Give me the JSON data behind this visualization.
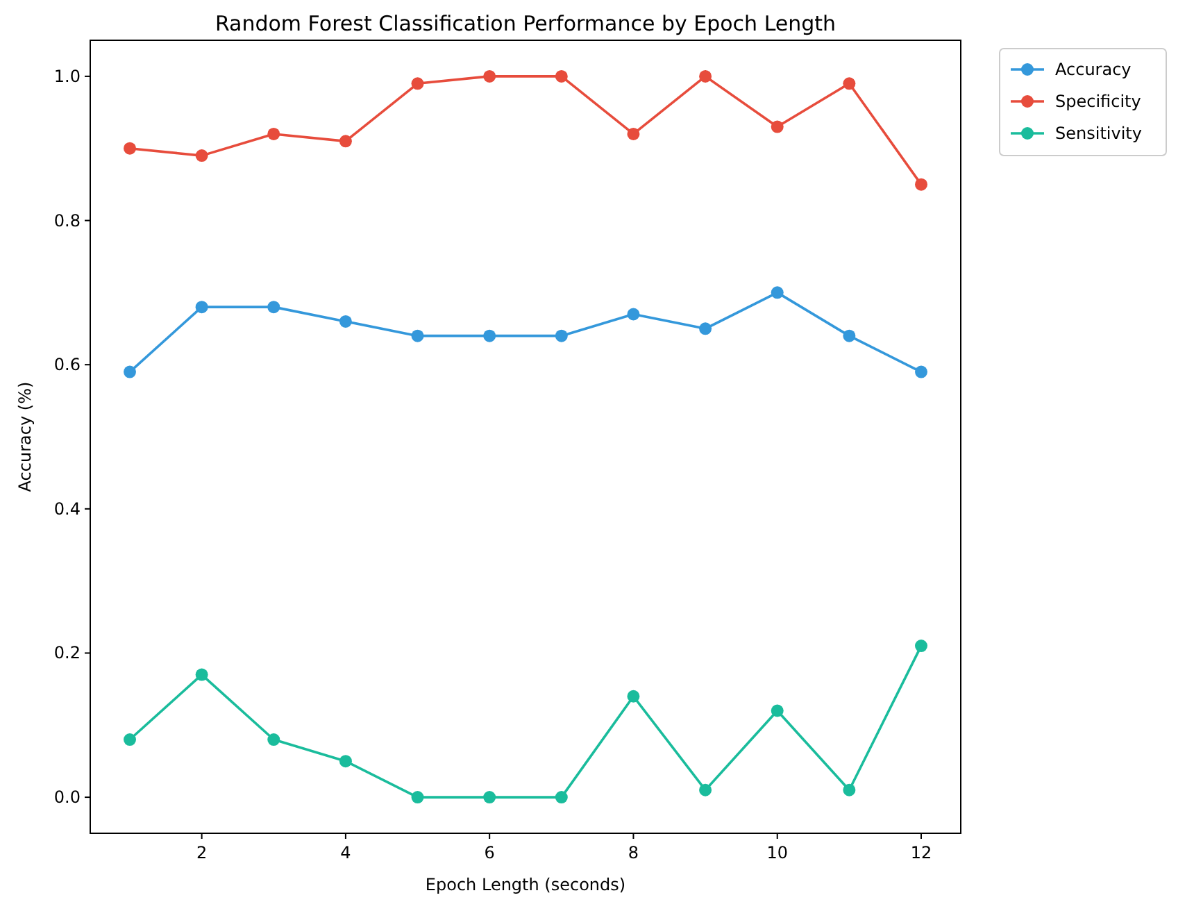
{
  "chart_data": {
    "type": "line",
    "title": "Random Forest Classification Performance by Epoch Length",
    "xlabel": "Epoch Length (seconds)",
    "ylabel": "Accuracy (%)",
    "x": [
      1,
      2,
      3,
      4,
      5,
      6,
      7,
      8,
      9,
      10,
      11,
      12
    ],
    "series": [
      {
        "name": "Accuracy",
        "color": "#3498db",
        "values": [
          0.59,
          0.68,
          0.68,
          0.66,
          0.64,
          0.64,
          0.64,
          0.67,
          0.65,
          0.7,
          0.64,
          0.59
        ]
      },
      {
        "name": "Specificity",
        "color": "#e74c3c",
        "values": [
          0.9,
          0.89,
          0.92,
          0.91,
          0.99,
          1.0,
          1.0,
          0.92,
          1.0,
          0.93,
          0.99,
          0.85
        ]
      },
      {
        "name": "Sensitivity",
        "color": "#1abc9c",
        "values": [
          0.08,
          0.17,
          0.08,
          0.05,
          0,
          0,
          0,
          0.14,
          0.01,
          0.12,
          0.01,
          0.21
        ]
      }
    ],
    "xlim": [
      0.45,
      12.55
    ],
    "xticks": [
      2,
      4,
      6,
      8,
      10,
      12
    ],
    "ylim": [
      -0.05,
      1.05
    ],
    "yticks": [
      {
        "value": 0,
        "label": "0.0"
      },
      {
        "value": 0.2,
        "label": "0.2"
      },
      {
        "value": 0.4,
        "label": "0.4"
      },
      {
        "value": 0.6,
        "label": "0.6"
      },
      {
        "value": 0.8,
        "label": "0.8"
      },
      {
        "value": 1,
        "label": "1.0"
      }
    ],
    "marker": "circle",
    "line_style": "solid",
    "legend": "top right",
    "grid": false
  }
}
